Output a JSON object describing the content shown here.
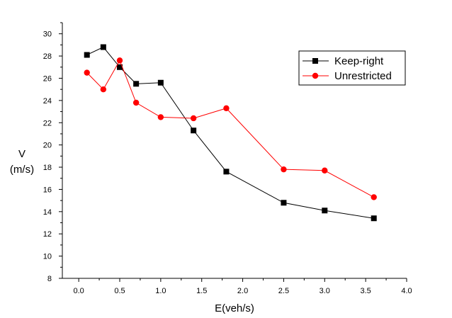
{
  "chart_data": {
    "type": "line",
    "title": "",
    "xlabel": "E(veh/s)",
    "ylabel_line1": "V",
    "ylabel_line2": "(m/s)",
    "xlim": [
      -0.2,
      4.0
    ],
    "ylim": [
      8,
      31
    ],
    "x_ticks": [
      "0.0",
      "0.5",
      "1.0",
      "1.5",
      "2.0",
      "2.5",
      "3.0",
      "3.5",
      "4.0"
    ],
    "y_ticks": [
      "8",
      "10",
      "12",
      "14",
      "16",
      "18",
      "20",
      "22",
      "24",
      "26",
      "28",
      "30"
    ],
    "grid": false,
    "legend_position": "top-right",
    "series": [
      {
        "name": "Keep-right",
        "color": "#000000",
        "marker": "square",
        "x": [
          0.1,
          0.3,
          0.5,
          0.7,
          1.0,
          1.4,
          1.8,
          2.5,
          3.0,
          3.6
        ],
        "y": [
          28.1,
          28.8,
          27.0,
          25.5,
          25.6,
          21.3,
          17.6,
          14.8,
          14.1,
          13.4
        ]
      },
      {
        "name": "Unrestricted",
        "color": "#ff0000",
        "marker": "circle",
        "x": [
          0.1,
          0.3,
          0.5,
          0.7,
          1.0,
          1.4,
          1.8,
          2.5,
          3.0,
          3.6
        ],
        "y": [
          26.5,
          25.0,
          27.6,
          23.8,
          22.5,
          22.4,
          23.3,
          17.8,
          17.7,
          15.3
        ]
      }
    ]
  }
}
